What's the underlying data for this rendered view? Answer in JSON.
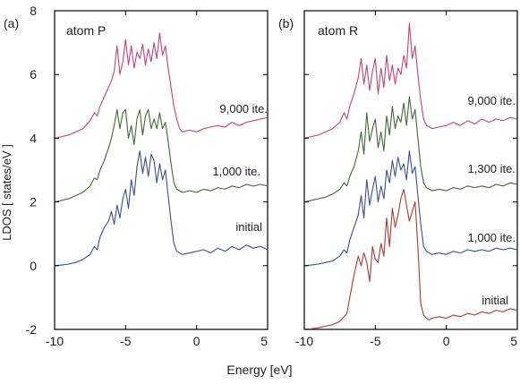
{
  "figure": {
    "ylabel": "LDOS [ states/eV ]",
    "xlabel": "Energy [eV]"
  },
  "colors": {
    "magenta": "#c4427a",
    "green": "#3e6a35",
    "blue": "#3b4f8e",
    "red": "#b2382d",
    "axis": "#000000"
  },
  "chart_data": [
    {
      "type": "line",
      "panel_label": "(a)",
      "title": "atom P",
      "xlabel": "Energy [eV]",
      "ylabel": "LDOS [ states/eV ]",
      "xlim": [
        -10,
        5
      ],
      "ylim": [
        -2,
        8
      ],
      "xticks": [
        -10,
        -5,
        0,
        5
      ],
      "yticks": [
        -2,
        0,
        2,
        4,
        6,
        8
      ],
      "grid": false,
      "curve_labels": [
        "9,000 ite.",
        "1,000 ite.",
        "initial"
      ],
      "series": [
        {
          "color_key": "magenta",
          "offset": 4,
          "x": [
            -10,
            -9.5,
            -9,
            -8.5,
            -8,
            -7.5,
            -7.2,
            -7,
            -6.8,
            -6.5,
            -6.2,
            -6,
            -5.8,
            -5.6,
            -5.4,
            -5.2,
            -5,
            -4.8,
            -4.6,
            -4.4,
            -4.2,
            -4,
            -3.8,
            -3.6,
            -3.4,
            -3.2,
            -3,
            -2.8,
            -2.6,
            -2.4,
            -2.2,
            -2,
            -1.8,
            -1.6,
            -1.4,
            -1.2,
            -1,
            -0.5,
            0,
            0.5,
            1,
            1.5,
            2,
            2.5,
            3,
            3.5,
            4,
            4.5,
            5
          ],
          "y": [
            4.0,
            4.05,
            4.1,
            4.2,
            4.3,
            4.55,
            4.8,
            4.7,
            5.0,
            5.3,
            5.6,
            5.8,
            6.1,
            6.9,
            6.0,
            6.4,
            7.1,
            6.3,
            6.9,
            6.2,
            6.7,
            6.5,
            6.95,
            6.3,
            6.8,
            6.4,
            7.0,
            6.5,
            7.3,
            6.6,
            6.9,
            6.2,
            5.6,
            5.0,
            4.6,
            4.3,
            4.2,
            4.25,
            4.2,
            4.3,
            4.35,
            4.4,
            4.35,
            4.5,
            4.4,
            4.5,
            4.55,
            4.6,
            4.65
          ]
        },
        {
          "color_key": "green",
          "offset": 2,
          "x": [
            -10,
            -9.5,
            -9,
            -8.5,
            -8,
            -7.5,
            -7.2,
            -7,
            -6.8,
            -6.5,
            -6.2,
            -6,
            -5.8,
            -5.6,
            -5.4,
            -5.2,
            -5,
            -4.8,
            -4.6,
            -4.4,
            -4.2,
            -4,
            -3.8,
            -3.6,
            -3.4,
            -3.2,
            -3,
            -2.8,
            -2.6,
            -2.4,
            -2.2,
            -2,
            -1.8,
            -1.6,
            -1.4,
            -1.2,
            -1,
            -0.5,
            0,
            0.5,
            1,
            1.5,
            2,
            2.5,
            3,
            3.5,
            4,
            4.5,
            5
          ],
          "y": [
            2.0,
            2.05,
            2.1,
            2.2,
            2.3,
            2.5,
            2.75,
            2.7,
            3.0,
            3.3,
            3.7,
            4.0,
            4.4,
            4.9,
            4.3,
            4.8,
            4.9,
            4.0,
            4.4,
            3.8,
            4.6,
            4.9,
            4.1,
            4.7,
            4.9,
            4.3,
            4.6,
            4.3,
            4.8,
            4.3,
            4.5,
            3.9,
            3.2,
            2.6,
            2.4,
            2.35,
            2.3,
            2.35,
            2.3,
            2.4,
            2.35,
            2.45,
            2.4,
            2.5,
            2.45,
            2.55,
            2.5,
            2.55,
            2.5
          ]
        },
        {
          "color_key": "blue",
          "offset": 0,
          "x": [
            -10,
            -9.5,
            -9,
            -8.5,
            -8,
            -7.5,
            -7.2,
            -7,
            -6.8,
            -6.5,
            -6.2,
            -6,
            -5.8,
            -5.6,
            -5.4,
            -5.2,
            -5,
            -4.8,
            -4.6,
            -4.4,
            -4.2,
            -4,
            -3.8,
            -3.6,
            -3.4,
            -3.2,
            -3,
            -2.8,
            -2.6,
            -2.4,
            -2.2,
            -2,
            -1.8,
            -1.6,
            -1.4,
            -1.2,
            -1,
            -0.5,
            0,
            0.5,
            1,
            1.5,
            2,
            2.5,
            3,
            3.5,
            4,
            4.5,
            5
          ],
          "y": [
            0.0,
            0.02,
            0.05,
            0.1,
            0.2,
            0.35,
            0.6,
            0.5,
            0.9,
            1.2,
            1.4,
            1.7,
            1.3,
            1.9,
            1.5,
            2.1,
            2.4,
            1.8,
            2.7,
            2.2,
            3.1,
            3.6,
            2.9,
            3.4,
            2.8,
            3.5,
            3.3,
            2.6,
            3.2,
            2.7,
            3.0,
            2.2,
            1.4,
            0.7,
            0.45,
            0.4,
            0.35,
            0.4,
            0.45,
            0.5,
            0.4,
            0.55,
            0.45,
            0.6,
            0.5,
            0.65,
            0.55,
            0.6,
            0.5
          ]
        }
      ]
    },
    {
      "type": "line",
      "panel_label": "(b)",
      "title": "atom R",
      "xlabel": "Energy [eV]",
      "ylabel": "",
      "xlim": [
        -10,
        5
      ],
      "ylim": [
        -2,
        8
      ],
      "xticks": [
        -10,
        -5,
        0,
        5
      ],
      "yticks": [
        -2,
        0,
        2,
        4,
        6,
        8
      ],
      "grid": false,
      "curve_labels": [
        "9,000 ite.",
        "1,300 ite.",
        "1,000 ite.",
        "initial"
      ],
      "series": [
        {
          "color_key": "magenta",
          "offset": 4,
          "x": [
            -10,
            -9.5,
            -9,
            -8.5,
            -8,
            -7.5,
            -7.2,
            -7,
            -6.8,
            -6.5,
            -6.2,
            -6,
            -5.8,
            -5.6,
            -5.4,
            -5.2,
            -5,
            -4.8,
            -4.6,
            -4.4,
            -4.2,
            -4,
            -3.8,
            -3.6,
            -3.4,
            -3.2,
            -3,
            -2.8,
            -2.6,
            -2.4,
            -2.2,
            -2,
            -1.8,
            -1.6,
            -1.4,
            -1.2,
            -1,
            -0.5,
            0,
            0.5,
            1,
            1.5,
            2,
            2.5,
            3,
            3.5,
            4,
            4.5,
            5
          ],
          "y": [
            4.0,
            4.05,
            4.1,
            4.2,
            4.3,
            4.5,
            4.8,
            4.6,
            5.0,
            5.4,
            5.9,
            6.5,
            5.7,
            6.3,
            5.5,
            6.1,
            6.5,
            5.4,
            6.2,
            5.6,
            6.6,
            5.8,
            6.3,
            5.7,
            6.2,
            6.0,
            6.6,
            6.2,
            7.6,
            6.5,
            6.9,
            6.0,
            5.2,
            4.6,
            4.4,
            4.35,
            4.3,
            4.35,
            4.4,
            4.5,
            4.4,
            4.55,
            4.45,
            4.6,
            4.5,
            4.6,
            4.55,
            4.65,
            4.6
          ]
        },
        {
          "color_key": "green",
          "offset": 2,
          "x": [
            -10,
            -9.5,
            -9,
            -8.5,
            -8,
            -7.5,
            -7.2,
            -7,
            -6.8,
            -6.5,
            -6.2,
            -6,
            -5.8,
            -5.6,
            -5.4,
            -5.2,
            -5,
            -4.8,
            -4.6,
            -4.4,
            -4.2,
            -4,
            -3.8,
            -3.6,
            -3.4,
            -3.2,
            -3,
            -2.8,
            -2.6,
            -2.4,
            -2.2,
            -2,
            -1.8,
            -1.6,
            -1.4,
            -1.2,
            -1,
            -0.5,
            0,
            0.5,
            1,
            1.5,
            2,
            2.5,
            3,
            3.5,
            4,
            4.5,
            5
          ],
          "y": [
            2.0,
            2.05,
            2.1,
            2.15,
            2.25,
            2.4,
            2.6,
            2.5,
            2.8,
            3.1,
            3.6,
            4.2,
            3.5,
            4.8,
            3.9,
            4.3,
            4.6,
            3.7,
            4.2,
            3.6,
            4.7,
            4.1,
            5.0,
            4.3,
            4.7,
            4.5,
            5.1,
            4.4,
            5.3,
            4.6,
            4.9,
            4.0,
            3.1,
            2.6,
            2.45,
            2.4,
            2.35,
            2.4,
            2.35,
            2.45,
            2.4,
            2.5,
            2.45,
            2.5,
            2.45,
            2.55,
            2.5,
            2.6,
            2.55
          ]
        },
        {
          "color_key": "blue",
          "offset": 0,
          "x": [
            -10,
            -9.5,
            -9,
            -8.5,
            -8,
            -7.5,
            -7.2,
            -7,
            -6.8,
            -6.5,
            -6.2,
            -6,
            -5.8,
            -5.6,
            -5.4,
            -5.2,
            -5,
            -4.8,
            -4.6,
            -4.4,
            -4.2,
            -4,
            -3.8,
            -3.6,
            -3.4,
            -3.2,
            -3,
            -2.8,
            -2.6,
            -2.4,
            -2.2,
            -2,
            -1.8,
            -1.6,
            -1.4,
            -1.2,
            -1,
            -0.5,
            0,
            0.5,
            1,
            1.5,
            2,
            2.5,
            3,
            3.5,
            4,
            4.5,
            5
          ],
          "y": [
            0.0,
            0.02,
            0.05,
            0.1,
            0.15,
            0.3,
            0.5,
            0.4,
            0.8,
            1.2,
            1.6,
            2.2,
            1.5,
            2.7,
            1.9,
            2.4,
            2.8,
            2.0,
            2.5,
            2.1,
            3.0,
            2.6,
            3.3,
            2.8,
            3.4,
            3.0,
            3.2,
            2.7,
            3.6,
            2.9,
            3.1,
            2.2,
            1.3,
            0.6,
            0.45,
            0.4,
            0.35,
            0.4,
            0.35,
            0.45,
            0.4,
            0.5,
            0.45,
            0.5,
            0.45,
            0.55,
            0.5,
            0.55,
            0.5
          ]
        },
        {
          "color_key": "red",
          "offset": -2,
          "x": [
            -10,
            -9.5,
            -9,
            -8.5,
            -8,
            -7.5,
            -7.2,
            -7,
            -6.8,
            -6.5,
            -6.2,
            -6,
            -5.8,
            -5.6,
            -5.4,
            -5.2,
            -5,
            -4.8,
            -4.6,
            -4.4,
            -4.2,
            -4,
            -3.8,
            -3.6,
            -3.4,
            -3.2,
            -3,
            -2.8,
            -2.6,
            -2.4,
            -2.2,
            -2,
            -1.8,
            -1.6,
            -1.4,
            -1.2,
            -1,
            -0.5,
            0,
            0.5,
            1,
            1.5,
            2,
            2.5,
            3,
            3.5,
            4,
            4.5,
            5
          ],
          "y": [
            -2.0,
            -1.98,
            -1.95,
            -1.9,
            -1.85,
            -1.75,
            -1.6,
            -1.5,
            -1.0,
            -0.3,
            0.3,
            0.0,
            0.4,
            0.1,
            -0.5,
            0.6,
            0.2,
            0.1,
            0.7,
            0.3,
            1.5,
            0.6,
            1.8,
            1.2,
            1.6,
            2.1,
            2.4,
            1.9,
            1.4,
            1.7,
            2.0,
            0.6,
            -1.2,
            -1.55,
            -1.65,
            -1.7,
            -1.65,
            -1.6,
            -1.65,
            -1.55,
            -1.6,
            -1.5,
            -1.55,
            -1.45,
            -1.5,
            -1.4,
            -1.45,
            -1.35,
            -1.4
          ]
        }
      ]
    }
  ]
}
